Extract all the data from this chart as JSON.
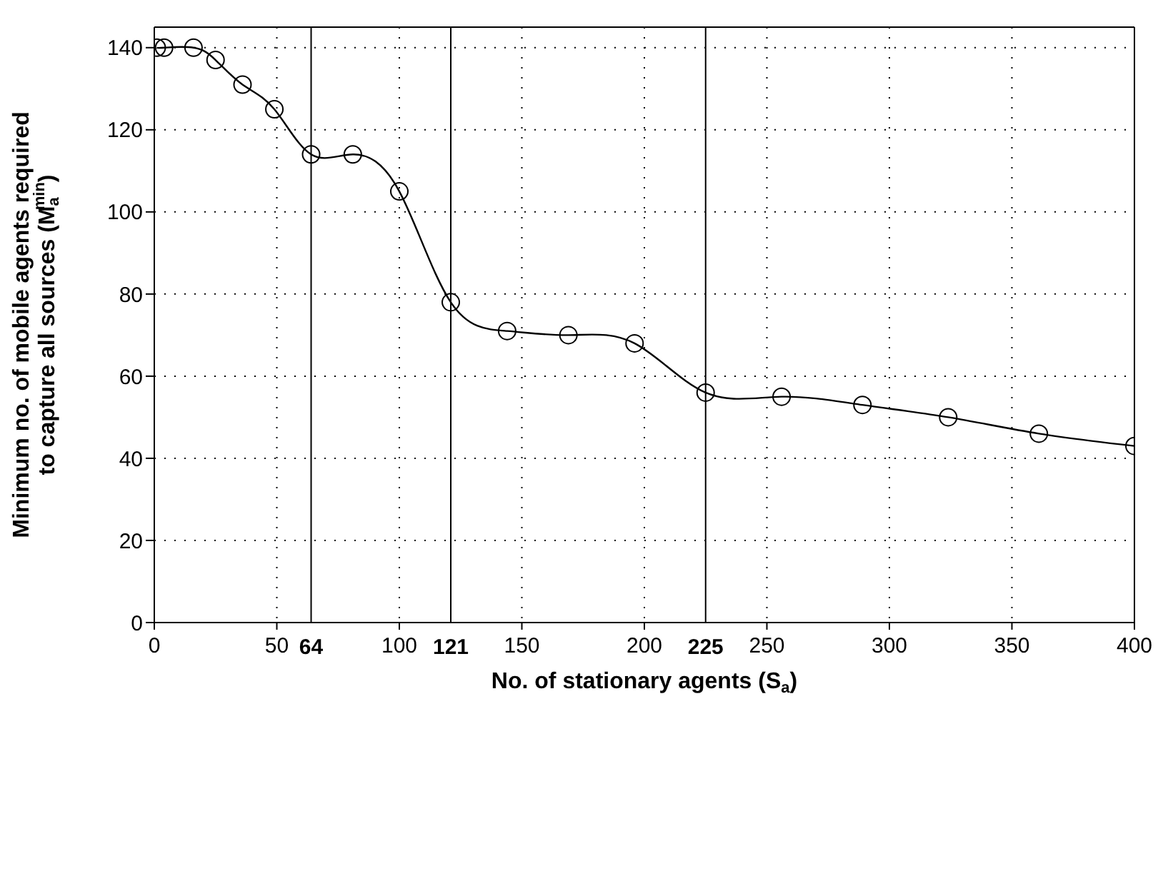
{
  "chart_data": {
    "type": "line",
    "xlabel": "No. of stationary agents (S$_{a}$)",
    "ylabel": "Minimum no. of mobile agents required to capture all sources (M$_{a}$$^{min}$)",
    "x": [
      1,
      4,
      16,
      25,
      36,
      49,
      64,
      81,
      100,
      121,
      144,
      169,
      196,
      225,
      256,
      289,
      324,
      361,
      400
    ],
    "series": [
      {
        "color": "#000000",
        "values": [
          140,
          140,
          140,
          137,
          131,
          125,
          114,
          114,
          105,
          78,
          71,
          70,
          68,
          56,
          55,
          53,
          50,
          46,
          43
        ]
      }
    ],
    "xlim": [
      0,
      400
    ],
    "xticks": [
      0,
      50,
      100,
      150,
      200,
      250,
      300,
      350,
      400
    ],
    "ylim": [
      0,
      145
    ],
    "yticks": [
      0,
      20,
      40,
      60,
      80,
      100,
      120,
      140
    ],
    "ref_lines": [
      {
        "axis": "x",
        "value": 64,
        "label": "64",
        "color": "#000000"
      },
      {
        "axis": "x",
        "value": 121,
        "label": "121",
        "color": "#000000"
      },
      {
        "axis": "x",
        "value": 225,
        "label": "225",
        "color": "#000000"
      }
    ],
    "grid": true,
    "marker": "circle",
    "line_style": "solid"
  }
}
